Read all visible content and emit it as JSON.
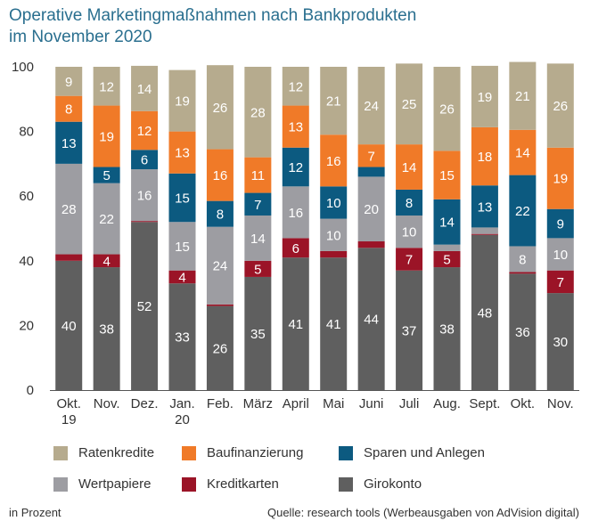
{
  "title_lines": [
    "Operative Marketingmaßnahmen nach Bankprodukten",
    "im November 2020"
  ],
  "footer": {
    "unit_note": "in Prozent",
    "source": "Quelle: research tools (Werbeausgaben von AdVision digital)"
  },
  "chart_data": {
    "type": "bar",
    "stacked": true,
    "title": "Operative Marketingmaßnahmen nach Bankprodukten im November 2020",
    "ylim": [
      0,
      100
    ],
    "yticks": [
      "0",
      "20",
      "40",
      "60",
      "80",
      "100"
    ],
    "categories": [
      [
        "Okt.",
        "19"
      ],
      [
        "Nov."
      ],
      [
        "Dez."
      ],
      [
        "Jan.",
        "20"
      ],
      [
        "Feb."
      ],
      [
        "März"
      ],
      [
        "April"
      ],
      [
        "Mai"
      ],
      [
        "Juni"
      ],
      [
        "Juli"
      ],
      [
        "Aug."
      ],
      [
        "Sept."
      ],
      [
        "Okt."
      ],
      [
        "Nov."
      ]
    ],
    "series": [
      {
        "name": "Girokonto",
        "color": "#5f5f5f",
        "text_color": "#ffffff",
        "values": [
          40,
          38,
          52,
          33,
          26,
          35,
          41,
          41,
          44,
          37,
          38,
          48,
          36,
          30
        ],
        "labels": [
          "40",
          "38",
          "52",
          "33",
          "26",
          "35",
          "41",
          "41",
          "44",
          "37",
          "38",
          "48",
          "36",
          "30"
        ]
      },
      {
        "name": "Kreditkarten",
        "color": "#9b1427",
        "text_color": "#ffffff",
        "values": [
          2,
          4,
          0.3,
          4,
          0.5,
          5,
          6,
          2,
          2,
          7,
          5,
          0.3,
          0.5,
          7
        ],
        "labels": [
          "",
          "4",
          "",
          "4",
          "",
          "5",
          "6",
          "",
          "",
          "7",
          "5",
          "",
          "",
          "7"
        ]
      },
      {
        "name": "Wertpapiere",
        "color": "#9d9da2",
        "text_color": "#ffffff",
        "values": [
          28,
          22,
          16,
          15,
          24,
          14,
          16,
          10,
          20,
          10,
          2,
          2,
          8,
          10
        ],
        "labels": [
          "28",
          "22",
          "16",
          "15",
          "24",
          "14",
          "16",
          "10",
          "20",
          "10",
          "",
          "",
          "8",
          "10"
        ]
      },
      {
        "name": "Sparen und Anlegen",
        "color": "#0c5a80",
        "text_color": "#ffffff",
        "values": [
          13,
          5,
          6,
          15,
          8,
          7,
          12,
          10,
          3,
          8,
          14,
          13,
          22,
          9
        ],
        "labels": [
          "13",
          "5",
          "6",
          "15",
          "8",
          "7",
          "12",
          "10",
          "",
          "8",
          "14",
          "13",
          "22",
          "9"
        ]
      },
      {
        "name": "Baufinanzierung",
        "color": "#f07a28",
        "text_color": "#ffffff",
        "values": [
          8,
          19,
          12,
          13,
          16,
          11,
          13,
          16,
          7,
          14,
          15,
          18,
          14,
          19
        ],
        "labels": [
          "8",
          "19",
          "12",
          "13",
          "16",
          "11",
          "13",
          "16",
          "7",
          "14",
          "15",
          "18",
          "14",
          "19"
        ]
      },
      {
        "name": "Ratenkredite",
        "color": "#b6ab8e",
        "text_color": "#ffffff",
        "values": [
          9,
          12,
          14,
          19,
          26,
          28,
          12,
          21,
          24,
          25,
          26,
          19,
          21,
          26
        ],
        "labels": [
          "9",
          "12",
          "14",
          "19",
          "26",
          "28",
          "12",
          "21",
          "24",
          "25",
          "26",
          "19",
          "21",
          "26"
        ]
      }
    ],
    "legend_order": [
      "Ratenkredite",
      "Baufinanzierung",
      "Sparen und Anlegen",
      "Wertpapiere",
      "Kreditkarten",
      "Girokonto"
    ],
    "legend_position": "bottom"
  }
}
